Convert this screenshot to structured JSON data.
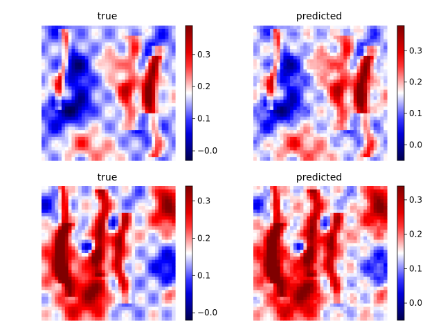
{
  "chart_data": [
    {
      "type": "heatmap",
      "title": "true",
      "colormap": "seismic",
      "colorbar": {
        "vmin": -0.03,
        "vmax": 0.39,
        "ticks": [
          0.0,
          0.1,
          0.2,
          0.3
        ],
        "tick_labels": [
          "−0.0",
          "0.1",
          "0.2",
          "0.3"
        ]
      },
      "axes_visible": false,
      "seed": 11
    },
    {
      "type": "heatmap",
      "title": "predicted",
      "colormap": "seismic",
      "colorbar": {
        "vmin": -0.05,
        "vmax": 0.38,
        "ticks": [
          0.0,
          0.1,
          0.2,
          0.3
        ],
        "tick_labels": [
          "0.0",
          "0.1",
          "0.2",
          "0.3"
        ]
      },
      "axes_visible": false,
      "seed": 11
    },
    {
      "type": "heatmap",
      "title": "true",
      "colormap": "seismic",
      "colorbar": {
        "vmin": -0.02,
        "vmax": 0.34,
        "ticks": [
          0.0,
          0.1,
          0.2,
          0.3
        ],
        "tick_labels": [
          "−0.0",
          "0.1",
          "0.2",
          "0.3"
        ]
      },
      "axes_visible": false,
      "seed": 29
    },
    {
      "type": "heatmap",
      "title": "predicted",
      "colormap": "seismic",
      "colorbar": {
        "vmin": -0.05,
        "vmax": 0.34,
        "ticks": [
          0.0,
          0.1,
          0.2,
          0.3
        ],
        "tick_labels": [
          "0.0",
          "0.1",
          "0.2",
          "0.3"
        ]
      },
      "axes_visible": false,
      "seed": 29
    }
  ]
}
